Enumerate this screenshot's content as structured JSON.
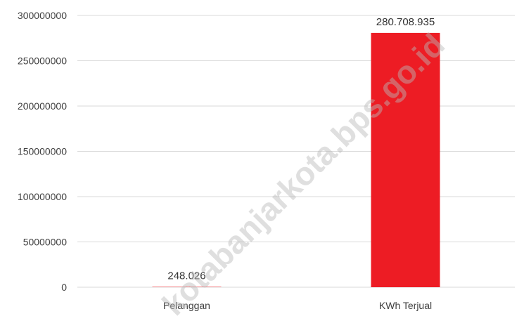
{
  "chart_data": {
    "type": "bar",
    "categories": [
      "Pelanggan",
      "KWh Terjual"
    ],
    "values": [
      248026,
      280708935
    ],
    "data_labels": [
      "248.026",
      "280.708.935"
    ],
    "y_ticks": [
      0,
      50000000,
      100000000,
      150000000,
      200000000,
      250000000,
      300000000
    ],
    "y_tick_labels": [
      "0",
      "50000000",
      "100000000",
      "150000000",
      "200000000",
      "250000000",
      "300000000"
    ],
    "ylim": [
      0,
      300000000
    ],
    "grid": true,
    "bar_color": "#ed1c24",
    "grid_color": "#d9d9d9"
  },
  "watermark": "kotabanjarkota.bps.go.id"
}
